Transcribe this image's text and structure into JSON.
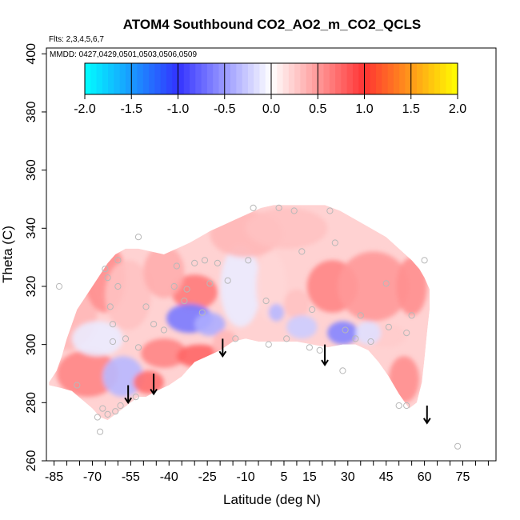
{
  "chart_data": {
    "type": "heatmap",
    "title": "ATOM4 Southbound CO2_AO2_m_CO2_QCLS",
    "subtitle_flights": "Flts: 2,3,4,5,6,7",
    "subtitle_dates": "MMDD: 0427,0429,0501,0503,0506,0509",
    "xlabel": "Latitude (deg N)",
    "ylabel": "Theta (C)",
    "xlim": [
      -88,
      88
    ],
    "ylim": [
      260,
      402
    ],
    "x_tick_labels": [
      -85,
      -70,
      -55,
      -40,
      -25,
      -10,
      5,
      15,
      30,
      45,
      60,
      75
    ],
    "x_minor_ticks": [
      -85,
      -80,
      -75,
      -70,
      -65,
      -60,
      -55,
      -50,
      -45,
      -40,
      -35,
      -30,
      -25,
      -20,
      -15,
      -10,
      -5,
      0,
      5,
      10,
      15,
      20,
      25,
      30,
      35,
      40,
      45,
      50,
      55,
      60,
      65,
      70,
      75,
      80,
      85
    ],
    "y_ticks": [
      260,
      280,
      300,
      320,
      340,
      360,
      380,
      400
    ],
    "colorbar": {
      "ticks": [
        -2.0,
        -1.5,
        -1.0,
        -0.5,
        0.0,
        0.5,
        1.0,
        1.5,
        2.0
      ],
      "tick_labels": [
        "-2.0",
        "-1.5",
        "-1.0",
        "-0.5",
        "0.0",
        "0.5",
        "1.0",
        "1.5",
        "2.0"
      ],
      "range": [
        -2.0,
        2.0
      ],
      "stops": [
        {
          "v": -2.0,
          "color": "#00ffff"
        },
        {
          "v": -1.0,
          "color": "#3333ff"
        },
        {
          "v": 0.0,
          "color": "#ffffff"
        },
        {
          "v": 1.0,
          "color": "#ff3333"
        },
        {
          "v": 2.0,
          "color": "#ffff00"
        }
      ]
    },
    "field_upper": [
      [
        -87,
        287
      ],
      [
        -84,
        291
      ],
      [
        -82,
        296
      ],
      [
        -80,
        302
      ],
      [
        -78,
        307
      ],
      [
        -76,
        312
      ],
      [
        -73,
        316
      ],
      [
        -70,
        320
      ],
      [
        -67,
        324
      ],
      [
        -64,
        328
      ],
      [
        -61,
        331
      ],
      [
        -57,
        333
      ],
      [
        -52,
        333
      ],
      [
        -47,
        332
      ],
      [
        -42,
        331
      ],
      [
        -37,
        333
      ],
      [
        -32,
        335
      ],
      [
        -28,
        337
      ],
      [
        -24,
        339
      ],
      [
        -19,
        341
      ],
      [
        -14,
        343
      ],
      [
        -9,
        345
      ],
      [
        -4,
        347
      ],
      [
        1,
        348
      ],
      [
        7,
        348
      ],
      [
        14,
        348
      ],
      [
        21,
        348
      ],
      [
        27,
        346
      ],
      [
        33,
        343
      ],
      [
        39,
        340
      ],
      [
        45,
        337
      ],
      [
        50,
        333
      ],
      [
        55,
        329
      ],
      [
        58,
        326
      ],
      [
        60,
        323
      ],
      [
        62,
        319
      ]
    ],
    "field_lower": [
      [
        62,
        319
      ],
      [
        62,
        312
      ],
      [
        61,
        304
      ],
      [
        60,
        295
      ],
      [
        59,
        287
      ],
      [
        57,
        280
      ],
      [
        54,
        278
      ],
      [
        50,
        283
      ],
      [
        46,
        289
      ],
      [
        42,
        294
      ],
      [
        38,
        298
      ],
      [
        33,
        300
      ],
      [
        28,
        300
      ],
      [
        22,
        299
      ],
      [
        16,
        300
      ],
      [
        10,
        301
      ],
      [
        5,
        301
      ],
      [
        0,
        301
      ],
      [
        -5,
        301
      ],
      [
        -10,
        302
      ],
      [
        -15,
        301
      ],
      [
        -20,
        298
      ],
      [
        -25,
        296
      ],
      [
        -30,
        294
      ],
      [
        -35,
        289
      ],
      [
        -40,
        286
      ],
      [
        -45,
        284
      ],
      [
        -49,
        282
      ],
      [
        -52,
        282
      ],
      [
        -55,
        280
      ],
      [
        -58,
        278
      ],
      [
        -61,
        276
      ],
      [
        -64,
        274
      ],
      [
        -67,
        275
      ],
      [
        -70,
        278
      ],
      [
        -74,
        281
      ],
      [
        -78,
        284
      ],
      [
        -82,
        285
      ],
      [
        -87,
        286
      ]
    ],
    "blobs": [
      {
        "lat": -80,
        "theta": 312,
        "value": 0.35,
        "rlat": 12,
        "rth": 14
      },
      {
        "lat": -65,
        "theta": 323,
        "value": 0.55,
        "rlat": 8,
        "rth": 12
      },
      {
        "lat": -56,
        "theta": 317,
        "value": 0.3,
        "rlat": 9,
        "rth": 12
      },
      {
        "lat": -72,
        "theta": 290,
        "value": 0.6,
        "rlat": 12,
        "rth": 8
      },
      {
        "lat": -58,
        "theta": 289,
        "value": -0.35,
        "rlat": 8,
        "rth": 7
      },
      {
        "lat": -68,
        "theta": 302,
        "value": -0.1,
        "rlat": 10,
        "rth": 6
      },
      {
        "lat": -30,
        "theta": 318,
        "value": 0.65,
        "rlat": 9,
        "rth": 6
      },
      {
        "lat": -42,
        "theta": 325,
        "value": 0.4,
        "rlat": 8,
        "rth": 9
      },
      {
        "lat": -32,
        "theta": 309,
        "value": -0.65,
        "rlat": 9,
        "rth": 5
      },
      {
        "lat": -24,
        "theta": 307,
        "value": -0.4,
        "rlat": 6,
        "rth": 4
      },
      {
        "lat": -42,
        "theta": 297,
        "value": 0.6,
        "rlat": 9,
        "rth": 5
      },
      {
        "lat": -28,
        "theta": 296,
        "value": 0.75,
        "rlat": 9,
        "rth": 4
      },
      {
        "lat": -48,
        "theta": 287,
        "value": 0.7,
        "rlat": 6,
        "rth": 4
      },
      {
        "lat": -18,
        "theta": 300,
        "value": 0.35,
        "rlat": 5,
        "rth": 5
      },
      {
        "lat": -12,
        "theta": 320,
        "value": -0.1,
        "rlat": 8,
        "rth": 14
      },
      {
        "lat": -10,
        "theta": 338,
        "value": 0.35,
        "rlat": 14,
        "rth": 8
      },
      {
        "lat": 6,
        "theta": 340,
        "value": 0.3,
        "rlat": 16,
        "rth": 7
      },
      {
        "lat": 0,
        "theta": 320,
        "value": 0.2,
        "rlat": 6,
        "rth": 12
      },
      {
        "lat": 10,
        "theta": 314,
        "value": 0.3,
        "rlat": 5,
        "rth": 5
      },
      {
        "lat": 24,
        "theta": 320,
        "value": 0.6,
        "rlat": 10,
        "rth": 9
      },
      {
        "lat": 40,
        "theta": 320,
        "value": 0.5,
        "rlat": 14,
        "rth": 12
      },
      {
        "lat": 55,
        "theta": 320,
        "value": 0.55,
        "rlat": 6,
        "rth": 10
      },
      {
        "lat": 28,
        "theta": 304,
        "value": -0.6,
        "rlat": 6,
        "rth": 4
      },
      {
        "lat": 12,
        "theta": 306,
        "value": -0.25,
        "rlat": 6,
        "rth": 4
      },
      {
        "lat": 45,
        "theta": 303,
        "value": 0.25,
        "rlat": 8,
        "rth": 4
      },
      {
        "lat": 52,
        "theta": 288,
        "value": 0.55,
        "rlat": 6,
        "rth": 8
      },
      {
        "lat": 38,
        "theta": 304,
        "value": -0.15,
        "rlat": 5,
        "rth": 4
      },
      {
        "lat": 2,
        "theta": 311,
        "value": -0.35,
        "rlat": 3,
        "rth": 3
      }
    ],
    "observation_points": [
      [
        -83,
        320
      ],
      [
        -76,
        286
      ],
      [
        -68,
        275
      ],
      [
        -67,
        270
      ],
      [
        -66,
        278
      ],
      [
        -64,
        276
      ],
      [
        -61,
        277
      ],
      [
        -59,
        279
      ],
      [
        -57,
        302
      ],
      [
        -62,
        301
      ],
      [
        -62,
        307
      ],
      [
        -63,
        313
      ],
      [
        -60,
        320
      ],
      [
        -64,
        323
      ],
      [
        -60,
        329
      ],
      [
        -65,
        326
      ],
      [
        -52,
        299
      ],
      [
        -49,
        313
      ],
      [
        -53,
        282
      ],
      [
        -52,
        337
      ],
      [
        -46,
        307
      ],
      [
        -42,
        305
      ],
      [
        -38,
        320
      ],
      [
        -37,
        327
      ],
      [
        -34,
        315
      ],
      [
        -33,
        319
      ],
      [
        -30,
        328
      ],
      [
        -27,
        311
      ],
      [
        -26,
        329
      ],
      [
        -24,
        321
      ],
      [
        -21,
        328
      ],
      [
        -17,
        322
      ],
      [
        -14,
        302
      ],
      [
        -9,
        329
      ],
      [
        -7,
        347
      ],
      [
        -2,
        315
      ],
      [
        -1,
        300
      ],
      [
        3,
        347
      ],
      [
        6,
        302
      ],
      [
        9,
        346
      ],
      [
        12,
        332
      ],
      [
        15,
        299
      ],
      [
        16,
        312
      ],
      [
        19,
        298
      ],
      [
        23,
        346
      ],
      [
        25,
        335
      ],
      [
        28,
        291
      ],
      [
        29,
        305
      ],
      [
        33,
        302
      ],
      [
        35,
        310
      ],
      [
        39,
        301
      ],
      [
        45,
        321
      ],
      [
        46,
        306
      ],
      [
        50,
        279
      ],
      [
        53,
        279
      ],
      [
        53,
        304
      ],
      [
        55,
        310
      ],
      [
        60,
        329
      ],
      [
        73,
        265
      ]
    ],
    "arrows": [
      {
        "lat": -56,
        "theta_top": 286,
        "theta_bottom": 280
      },
      {
        "lat": -46,
        "theta_top": 290,
        "theta_bottom": 283
      },
      {
        "lat": -19,
        "theta_top": 302,
        "theta_bottom": 296
      },
      {
        "lat": 21,
        "theta_top": 300,
        "theta_bottom": 293
      },
      {
        "lat": 61,
        "theta_top": 279,
        "theta_bottom": 273
      }
    ]
  }
}
